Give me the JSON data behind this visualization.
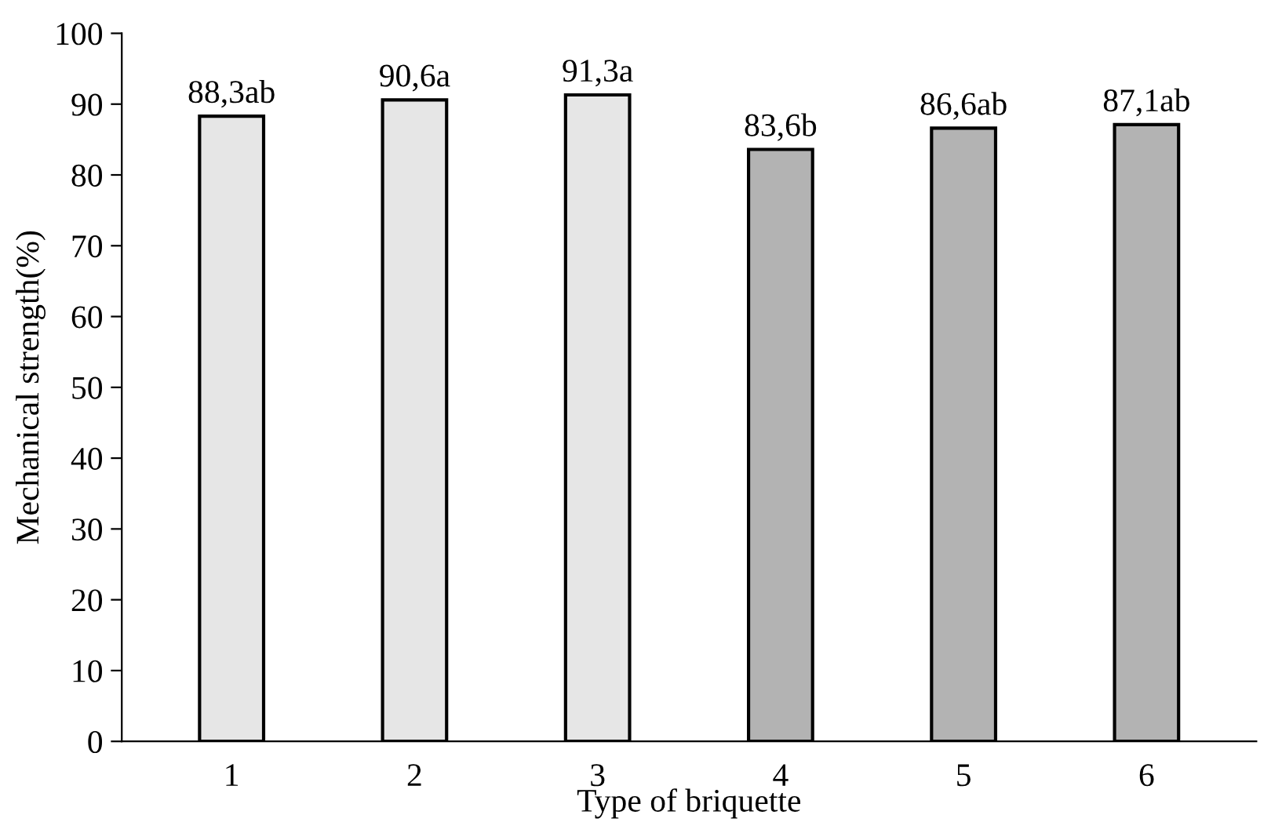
{
  "chart_data": {
    "type": "bar",
    "xlabel": "Type of briquette",
    "ylabel": "Mechanical strength(%)",
    "categories": [
      "1",
      "2",
      "3",
      "4",
      "5",
      "6"
    ],
    "values": [
      88.3,
      90.6,
      91.3,
      83.6,
      86.6,
      87.1
    ],
    "value_labels": [
      "88,3ab",
      "90,6a",
      "91,3a",
      "83,6b",
      "86,6ab",
      "87,1ab"
    ],
    "colors": [
      "#e6e6e6",
      "#e6e6e6",
      "#e6e6e6",
      "#b3b3b3",
      "#b3b3b3",
      "#b3b3b3"
    ],
    "ylim": [
      0,
      100
    ],
    "yticks": [
      0,
      10,
      20,
      30,
      40,
      50,
      60,
      70,
      80,
      90,
      100
    ],
    "grid": false,
    "legend": false
  }
}
